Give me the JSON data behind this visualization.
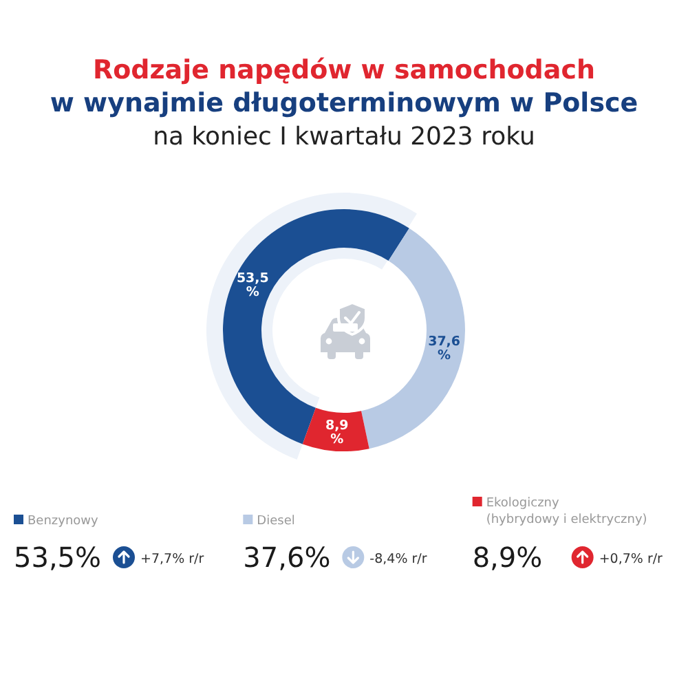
{
  "chart_data": {
    "type": "donut",
    "title": "Rodzaje napędów w samochodach\nw wynajmie długoterminowym w Polsce",
    "subtitle": "na koniec I kwartału 2023 roku",
    "categories": [
      "Benzynowy",
      "Diesel",
      "Ekologiczny (hybrydowy i elektryczny)"
    ],
    "values": [
      53.5,
      37.6,
      8.9
    ],
    "colors": [
      "#1b4f93",
      "#b8cae4",
      "#e0262f"
    ],
    "value_labels": [
      "53,5%",
      "37,6%",
      "8,9%"
    ],
    "annotations": [
      "+7,7% r/r",
      "-8,4% r/r",
      "+0,7% r/r"
    ],
    "legend": "bottom"
  }
}
